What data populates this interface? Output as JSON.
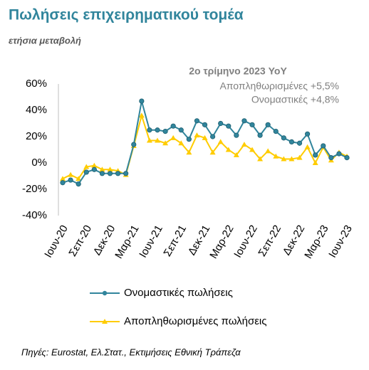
{
  "chart_data": {
    "type": "line",
    "title": "Πωλήσεις επιχειρηματικού τομέα",
    "subtitle": "ετήσια μεταβολή",
    "annotations": [
      "2ο τρίμηνο 2023 YoY",
      "Αποπληθωρισμένες +5,5%",
      "Ονομαστικές +4,8%"
    ],
    "source": "Πηγές: Eurostat, Ελ.Στατ., Εκτιμήσεις Εθνική Τράπεζα",
    "categories": [
      "Ιουν-20",
      null,
      null,
      "Σεπ-20",
      null,
      null,
      "Δεκ-20",
      null,
      null,
      "Μαρ-21",
      null,
      null,
      "Ιουν-21",
      null,
      null,
      "Σεπ-21",
      null,
      null,
      "Δεκ-21",
      null,
      null,
      "Μαρ-22",
      null,
      null,
      "Ιουν-22",
      null,
      null,
      "Σεπ-22",
      null,
      null,
      "Δεκ-22",
      null,
      null,
      "Μαρ-23",
      null,
      null,
      "Ιουν-23"
    ],
    "series": [
      {
        "name": "Ονομαστικές πωλήσεις",
        "color": "#31859c",
        "marker": "circle",
        "values": [
          -15,
          -13,
          -16,
          -7,
          -5,
          -8,
          -8,
          -8,
          -8,
          14,
          47,
          25,
          25,
          24,
          28,
          25,
          18,
          32,
          29,
          20,
          30,
          28,
          21,
          32,
          29,
          21,
          29,
          24,
          19,
          16,
          15,
          22,
          6,
          13,
          4,
          7,
          4
        ]
      },
      {
        "name": "Αποπληθωρισμένες πωλήσεις",
        "color": "#ffcc00",
        "marker": "triangle",
        "values": [
          -12,
          -9,
          -12,
          -3,
          -2,
          -5,
          -5,
          -6,
          -9,
          13,
          36,
          17,
          17,
          15,
          19,
          15,
          8,
          21,
          19,
          8,
          16,
          10,
          6,
          14,
          10,
          3,
          9,
          5,
          3,
          3,
          4,
          12,
          0,
          12,
          2,
          8,
          5
        ]
      }
    ],
    "ylim": [
      -40,
      60
    ],
    "yticks": [
      {
        "value": -40,
        "label": "-40%"
      },
      {
        "value": -20,
        "label": "-20%"
      },
      {
        "value": 0,
        "label": "0%"
      },
      {
        "value": 20,
        "label": "20%"
      },
      {
        "value": 40,
        "label": "40%"
      },
      {
        "value": 60,
        "label": "60%"
      }
    ],
    "grid": false
  }
}
